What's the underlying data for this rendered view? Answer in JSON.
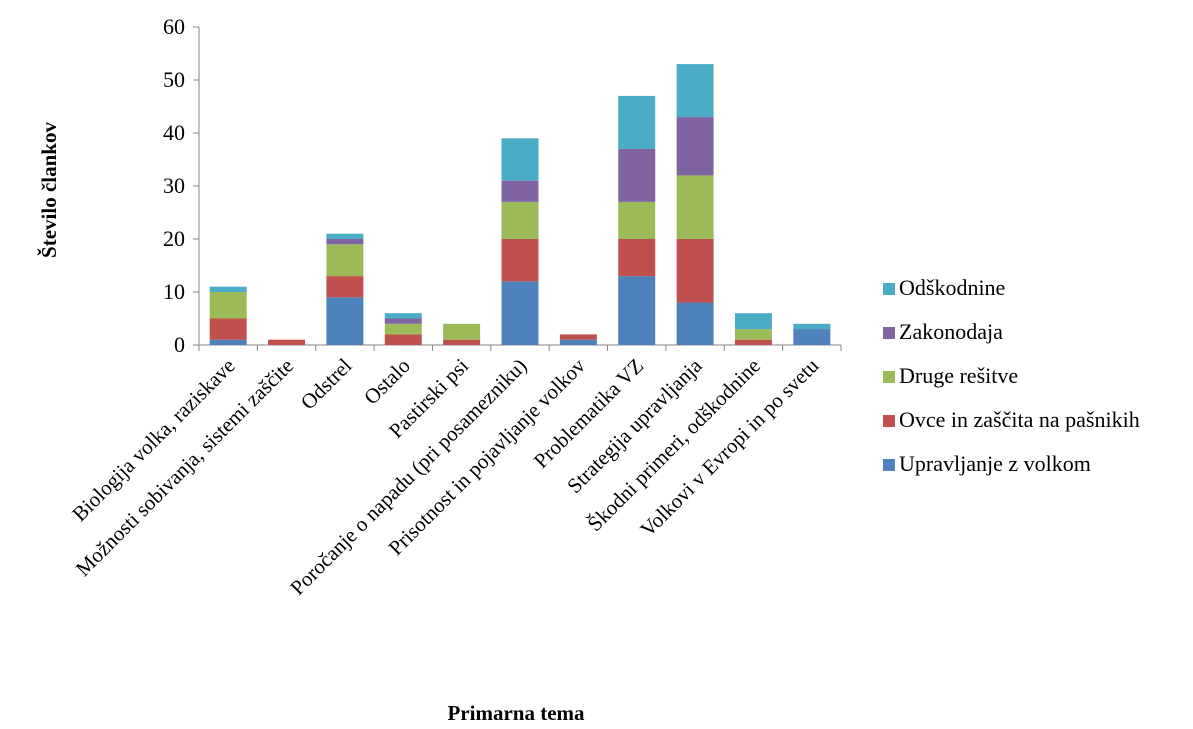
{
  "chart_data": {
    "type": "bar",
    "stacked": true,
    "xlabel": "Primarna tema",
    "ylabel": "Število člankov",
    "ylim": [
      0,
      60
    ],
    "yticks": [
      0,
      10,
      20,
      30,
      40,
      50,
      60
    ],
    "grid": false,
    "legend_position": "right",
    "categories": [
      "Biologija volka, raziskave",
      "Možnosti sobivanja, sistemi zaščite",
      "Odstrel",
      "Ostalo",
      "Pastirski psi",
      "Poročanje o napadu (pri posamezniku)",
      "Prisotnost in pojavljanje volkov",
      "Problematika VZ",
      "Strategija upravljanja",
      "Škodni primeri, odškodnine",
      "Volkovi v Evropi in po svetu"
    ],
    "series": [
      {
        "name": "Upravljanje z volkom",
        "color": "#4F81BD",
        "values": [
          1,
          0,
          9,
          0,
          0,
          12,
          1,
          13,
          8,
          0,
          3
        ]
      },
      {
        "name": "Ovce in zaščita na pašnikih",
        "color": "#C0504D",
        "values": [
          4,
          1,
          4,
          2,
          1,
          8,
          1,
          7,
          12,
          1,
          0
        ]
      },
      {
        "name": "Druge rešitve",
        "color": "#9BBB59",
        "values": [
          5,
          0,
          6,
          2,
          3,
          7,
          0,
          7,
          12,
          2,
          0
        ]
      },
      {
        "name": "Zakonodaja",
        "color": "#8064A2",
        "values": [
          0,
          0,
          1,
          1,
          0,
          4,
          0,
          10,
          11,
          0,
          0
        ]
      },
      {
        "name": "Odškodnine",
        "color": "#4BACC6",
        "values": [
          1,
          0,
          1,
          1,
          0,
          8,
          0,
          10,
          10,
          3,
          1
        ]
      }
    ]
  }
}
